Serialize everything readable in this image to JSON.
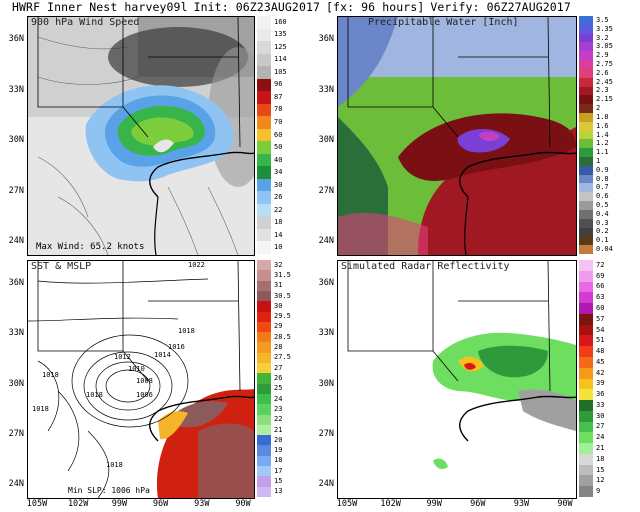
{
  "header": {
    "model": "HWRF Inner Nest harvey09l",
    "init": "Init: 06Z23AUG2017",
    "forecast": "[fx: 96 hours]",
    "verify": "Verify: 06Z27AUG2017"
  },
  "panels": {
    "wind": {
      "title": "900 hPa Wind Speed",
      "max_note": "Max Wind: 65.2 knots"
    },
    "pw": {
      "title": "Precipitable Water [Inch]"
    },
    "sst": {
      "title": "SST & MSLP",
      "min_note": "Min SLP: 1006 hPa",
      "isobars": [
        "1022",
        "1018",
        "1016",
        "1014",
        "1012",
        "1010",
        "1008",
        "1006",
        "1018",
        "1018",
        "1018",
        "1018"
      ]
    },
    "radar": {
      "title": "Simulated Radar Reflectivity"
    }
  },
  "lat_labels": [
    "36N",
    "33N",
    "30N",
    "27N",
    "24N"
  ],
  "lon_labels": [
    "105W",
    "102W",
    "99W",
    "96W",
    "93W",
    "90W"
  ],
  "colorbars": {
    "wind": {
      "labels": [
        "160",
        "135",
        "125",
        "114",
        "105",
        "96",
        "87",
        "78",
        "70",
        "60",
        "50",
        "40",
        "34",
        "30",
        "26",
        "22",
        "18",
        "14",
        "10"
      ],
      "colors": [
        "#f2f2f2",
        "#eaeaea",
        "#d8d8d8",
        "#c8c8c8",
        "#b3b3b3",
        "#8d1010",
        "#c81414",
        "#e64a19",
        "#f3871f",
        "#f5c02a",
        "#7ccd3c",
        "#37b54a",
        "#1d8f3a",
        "#5aa2e8",
        "#8fc3f2",
        "#b9dcf7",
        "#cfd0d1",
        "#e2e2e2",
        "#f5f5f5"
      ]
    },
    "pw": {
      "labels": [
        "3.5",
        "3.35",
        "3.2",
        "3.05",
        "2.9",
        "2.75",
        "2.6",
        "2.45",
        "2.3",
        "2.15",
        "2",
        "1.8",
        "1.6",
        "1.4",
        "1.2",
        "1.1",
        "1",
        "0.9",
        "0.8",
        "0.7",
        "0.6",
        "0.5",
        "0.4",
        "0.3",
        "0.2",
        "0.1",
        "0.04"
      ],
      "colors": [
        "#3f6fd6",
        "#5a5ae0",
        "#7b3fd6",
        "#a43fd0",
        "#c43fc4",
        "#d93fa0",
        "#e0407a",
        "#c8283a",
        "#a01822",
        "#7a1014",
        "#7a2a1a",
        "#c6a21e",
        "#d8c83a",
        "#b8d43a",
        "#6cbd3a",
        "#2f9a3a",
        "#2a6f3a",
        "#3a5aa8",
        "#6a86c8",
        "#a0b6e0",
        "#c4c4c4",
        "#9a9a9a",
        "#707070",
        "#505050",
        "#404040",
        "#5a3a1a",
        "#c87a3a"
      ]
    },
    "sst": {
      "labels": [
        "32",
        "31.5",
        "31",
        "30.5",
        "30",
        "29.5",
        "29",
        "28.5",
        "28",
        "27.5",
        "27",
        "26",
        "25",
        "24",
        "23",
        "22",
        "21",
        "20",
        "19",
        "18",
        "17",
        "15",
        "13"
      ],
      "colors": [
        "#d8a8a8",
        "#c88f8f",
        "#a57070",
        "#8c5a5a",
        "#c81010",
        "#e02010",
        "#f04a10",
        "#f37a18",
        "#f59a20",
        "#f5b52a",
        "#f5d03a",
        "#43b33a",
        "#2f9a3a",
        "#3cc04a",
        "#5ad060",
        "#8ede80",
        "#aef0a0",
        "#3a6ad8",
        "#5a8ae0",
        "#7aaaf0",
        "#a0c8f8",
        "#c0a0e8",
        "#d0b8f0"
      ]
    },
    "radar": {
      "labels": [
        "72",
        "69",
        "66",
        "63",
        "60",
        "57",
        "54",
        "51",
        "48",
        "45",
        "42",
        "39",
        "36",
        "33",
        "30",
        "27",
        "24",
        "21",
        "18",
        "15",
        "12",
        "9"
      ],
      "colors": [
        "#f5c2f5",
        "#f09af0",
        "#e66ae6",
        "#d23cd2",
        "#b018b0",
        "#7a1414",
        "#a81010",
        "#d81818",
        "#f03c18",
        "#f56a1a",
        "#f59a1a",
        "#f5c21e",
        "#f5e23a",
        "#1f6e2a",
        "#2f9a3a",
        "#45c24a",
        "#6ede60",
        "#a0f09a",
        "#d8d8d8",
        "#bcbcbc",
        "#a0a0a0",
        "#848484"
      ]
    }
  }
}
